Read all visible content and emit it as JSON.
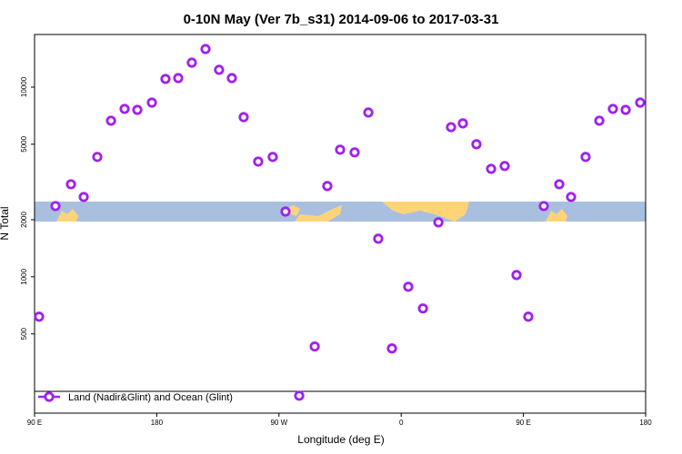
{
  "chart_data": {
    "type": "scatter",
    "title": "0-10N May (Ver 7b_s31)   2014-09-06 to 2017-03-31",
    "x_label": "Longitude (deg E)",
    "y_label": "N Total",
    "xlim": [
      90,
      540
    ],
    "xticks": [
      {
        "value": 90,
        "label": "90 E"
      },
      {
        "value": 180,
        "label": "180"
      },
      {
        "value": 270,
        "label": "90 W"
      },
      {
        "value": 360,
        "label": "0"
      },
      {
        "value": 450,
        "label": "90 E"
      },
      {
        "value": 540,
        "label": "180"
      }
    ],
    "ylim": [
      191,
      18950
    ],
    "yticks": [
      500,
      1000,
      2000,
      5000,
      10000
    ],
    "log_y": true,
    "series": [
      {
        "name": "Land (Nadir&Glint) and Ocean (Glint)",
        "color": "#a020f0",
        "x": [
          93.3,
          105.4,
          116.8,
          126.2,
          136.2,
          146.3,
          156.3,
          165.7,
          176.4,
          186.4,
          195.8,
          205.8,
          215.9,
          225.9,
          235.3,
          244.0,
          254.7,
          265.4,
          274.8,
          284.9,
          296.3,
          305.6,
          315.0,
          325.7,
          335.8,
          343.1,
          353.2,
          365.2,
          376.0,
          387.4,
          396.7,
          405.4,
          415.4,
          426.2,
          436.2,
          444.9,
          453.6,
          465.0,
          476.4,
          485.1,
          495.8,
          505.9,
          515.9,
          525.3,
          536.0
        ],
        "values": [
          616,
          2361,
          3076,
          2636,
          4285,
          6653,
          7680,
          7590,
          8290,
          11050,
          11160,
          13460,
          15880,
          12340,
          11160,
          6950,
          4050,
          4285,
          2208,
          236,
          429,
          3010,
          4680,
          4530,
          7350,
          1588,
          419,
          886,
          681,
          1937,
          6150,
          6440,
          5000,
          3710,
          3840,
          1022,
          616,
          2361,
          3076,
          2636,
          4285,
          6653,
          7680,
          7590,
          8290
        ]
      }
    ]
  }
}
